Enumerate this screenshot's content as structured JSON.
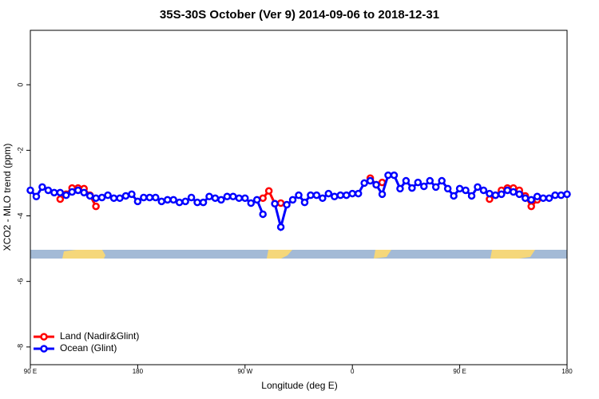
{
  "chart_data": {
    "type": "line",
    "title": "35S-30S October (Ver 9)   2014-09-06 to 2018-12-31",
    "x_label": "Longitude (deg E)",
    "y_label": "XCO2 - MLO trend (ppm)",
    "x": [
      90,
      95,
      100,
      105,
      110,
      115,
      120,
      125,
      130,
      135,
      140,
      145,
      150,
      155,
      160,
      165,
      170,
      175,
      180,
      185,
      190,
      195,
      200,
      205,
      210,
      215,
      220,
      225,
      230,
      235,
      240,
      245,
      250,
      255,
      260,
      265,
      270,
      275,
      280,
      285,
      290,
      295,
      300,
      305,
      310,
      315,
      320,
      325,
      330,
      335,
      340,
      345,
      350,
      355,
      360,
      365,
      370,
      375,
      380,
      385,
      390,
      395,
      400,
      405,
      410,
      415,
      420,
      425,
      430,
      435,
      440,
      445,
      450,
      455,
      460,
      465,
      470,
      475,
      480,
      485,
      490,
      495,
      500,
      505,
      510,
      515,
      520,
      525,
      530,
      535,
      540
    ],
    "series": [
      {
        "name": "Land (Nadir&Glint)",
        "color": "#ff0000",
        "values": [
          null,
          null,
          null,
          null,
          null,
          -3.49,
          -3.34,
          -3.15,
          -3.15,
          -3.17,
          -3.37,
          -3.71,
          null,
          null,
          null,
          null,
          null,
          null,
          null,
          null,
          null,
          null,
          null,
          null,
          null,
          null,
          null,
          null,
          null,
          null,
          null,
          null,
          null,
          null,
          null,
          null,
          null,
          null,
          null,
          -3.46,
          -3.24,
          -3.63,
          -3.61,
          null,
          null,
          null,
          null,
          null,
          null,
          null,
          null,
          null,
          null,
          null,
          null,
          null,
          null,
          -2.85,
          -3.05,
          -2.98,
          null,
          null,
          null,
          null,
          null,
          null,
          null,
          null,
          null,
          null,
          null,
          null,
          null,
          null,
          null,
          null,
          null,
          -3.49,
          -3.37,
          -3.22,
          -3.15,
          -3.15,
          -3.22,
          -3.39,
          -3.71,
          -3.51,
          null,
          null,
          null,
          null,
          null
        ]
      },
      {
        "name": "Ocean (Glint)",
        "color": "#0000ff",
        "values": [
          -3.22,
          -3.41,
          -3.12,
          -3.22,
          -3.29,
          -3.29,
          -3.37,
          -3.27,
          -3.22,
          -3.29,
          -3.39,
          -3.46,
          -3.44,
          -3.37,
          -3.46,
          -3.46,
          -3.39,
          -3.34,
          -3.56,
          -3.44,
          -3.44,
          -3.44,
          -3.56,
          -3.51,
          -3.51,
          -3.59,
          -3.56,
          -3.44,
          -3.59,
          -3.59,
          -3.41,
          -3.46,
          -3.51,
          -3.41,
          -3.41,
          -3.46,
          -3.46,
          -3.61,
          -3.51,
          -3.95,
          null,
          -3.63,
          -4.34,
          -3.66,
          -3.51,
          -3.37,
          -3.59,
          -3.37,
          -3.37,
          -3.46,
          -3.32,
          -3.41,
          -3.37,
          -3.37,
          -3.32,
          -3.32,
          -3.0,
          -2.93,
          -3.05,
          -3.34,
          -2.76,
          -2.76,
          -3.17,
          -2.93,
          -3.15,
          -2.98,
          -3.1,
          -2.93,
          -3.12,
          -2.93,
          -3.17,
          -3.39,
          -3.17,
          -3.22,
          -3.39,
          -3.12,
          -3.22,
          -3.32,
          -3.37,
          -3.34,
          -3.22,
          -3.27,
          -3.34,
          -3.46,
          -3.51,
          -3.41,
          -3.46,
          -3.46,
          -3.37,
          -3.37,
          -3.34
        ]
      }
    ],
    "xlim": [
      90,
      540
    ],
    "xticks": [
      {
        "value": 90,
        "label": "90 E"
      },
      180,
      {
        "value": 270,
        "label": "90 W"
      },
      {
        "value": 360,
        "label": "0"
      },
      {
        "value": 450,
        "label": "90 E"
      },
      {
        "value": 540,
        "label": "180"
      }
    ],
    "ylim": [
      -8.54,
      1.66
    ],
    "yticks": [
      0,
      -2,
      -4,
      -6,
      -8
    ],
    "legend": "bottom-left"
  }
}
